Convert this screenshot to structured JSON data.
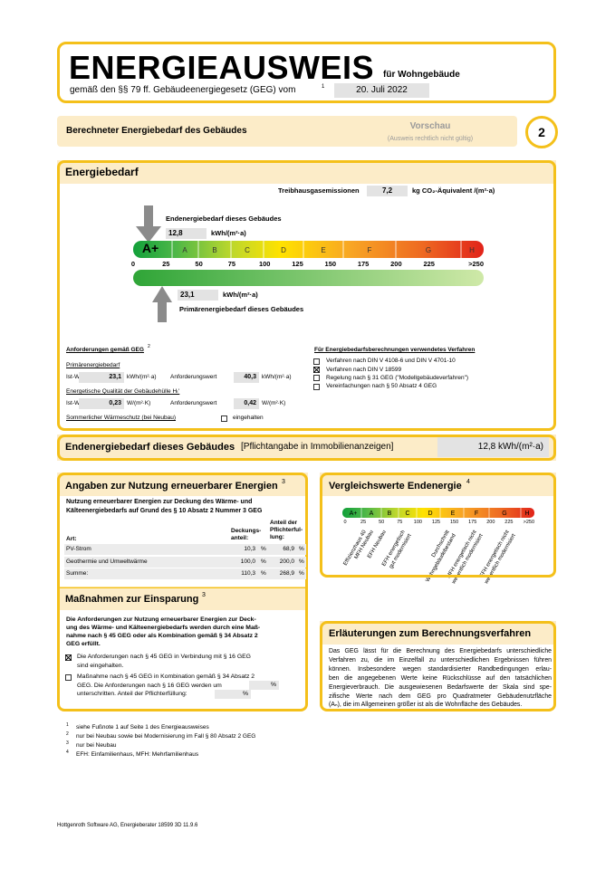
{
  "header": {
    "title": "ENERGIEAUSWEIS",
    "subtitle": "für Wohngebäude",
    "legal_basis": "gemäß den §§ 79 ff. Gebäudeenergiegesetz (GEG) vom",
    "legal_note": "1",
    "date": "20. Juli 2022"
  },
  "section": {
    "title": "Berechneter Energiebedarf des Gebäudes",
    "preview": "Vorschau",
    "preview_note": "(Ausweis rechtlich nicht gültig)",
    "page": "2"
  },
  "energy": {
    "title": "Energiebedarf",
    "ghg_label": "Treibhausgasemissionen",
    "ghg_value": "7,2",
    "ghg_unit": "kg CO₂-Äquivalent /(m²·a)",
    "final_label": "Endenergiebedarf dieses Gebäudes",
    "final_value": "12,8",
    "final_unit": "kWh/(m²·a)",
    "classes": [
      "A+",
      "A",
      "B",
      "C",
      "D",
      "E",
      "F",
      "G",
      "H"
    ],
    "ticks": [
      "0",
      "25",
      "50",
      "75",
      "100",
      "125",
      "150",
      "175",
      "200",
      "225",
      ">250"
    ],
    "primary_value": "23,1",
    "primary_unit": "kWh/(m²·a)",
    "primary_label": "Primärenergiebedarf dieses Gebäudes"
  },
  "requirements": {
    "title": "Anforderungen gemäß GEG",
    "note": "2",
    "primary": {
      "title": "Primärenergiebedarf",
      "actual_label": "Ist-Wert",
      "actual_value": "23,1",
      "actual_unit": "kWh/(m²·a)",
      "required_label": "Anforderungswert",
      "required_value": "40,3",
      "required_unit": "kWh/(m²·a)"
    },
    "envelope": {
      "title": "Energetische Qualität der Gebäudehülle Hₜ'",
      "actual_label": "Ist-Wert",
      "actual_value": "0,23",
      "actual_unit": "W/(m²·K)",
      "required_label": "Anforderungswert",
      "required_value": "0,42",
      "required_unit": "W/(m²·K)"
    },
    "summer": {
      "label": "Sommerlicher Wärmeschutz (bei Neubau)",
      "option": "eingehalten",
      "checked": false
    }
  },
  "procedure": {
    "title": "Für Energiebedarfsberechnungen verwendetes Verfahren",
    "options": [
      {
        "label": "Verfahren nach DIN V 4108-6 und DIN V 4701-10",
        "checked": false
      },
      {
        "label": "Verfahren nach DIN V 18599",
        "checked": true
      },
      {
        "label": "Regelung nach § 31 GEG (\"Modellgebäudeverfahren\")",
        "checked": false
      },
      {
        "label": "Vereinfachungen nach § 50 Absatz 4 GEG",
        "checked": false
      }
    ]
  },
  "final_demand": {
    "label": "Endenergiebedarf dieses Gebäudes",
    "note": "[Pflichtangabe in Immobilienanzeigen]",
    "value": "12,8 kWh/(m²·a)"
  },
  "renewables": {
    "title": "Angaben zur Nutzung erneuerbarer Energien",
    "note": "3",
    "intro": [
      "Nutzung erneuerbarer Energien zur Deckung des Wärme- und",
      "Kälteenergiebedarfs auf Grund des § 10 Absatz 2 Nummer 3 GEG"
    ],
    "columns": {
      "type": "Art:",
      "coverage": [
        "Deckungs-",
        "anteil:"
      ],
      "fulfilment": [
        "Anteil der",
        "Pflichterful-",
        "lung:"
      ]
    },
    "rows": [
      {
        "type": "PV-Strom",
        "coverage": "10,3",
        "fulfilment": "68,9"
      },
      {
        "type": "Geothermie und Umweltwärme",
        "coverage": "100,0",
        "fulfilment": "200,0"
      },
      {
        "type": "Summe:",
        "coverage": "110,3",
        "fulfilment": "268,9"
      }
    ],
    "unit": "%"
  },
  "measures": {
    "title": "Maßnahmen zur Einsparung",
    "note": "3",
    "intro": [
      "Die Anforderungen zur Nutzung erneuerbarer Energien zur Deck-",
      "ung des Wärme- und Kälteenergiebedarfs werden durch eine Maß-",
      "nahme nach § 45 GEG oder als Kombination gemäß § 34 Absatz 2",
      "GEG erfüllt."
    ],
    "options": [
      {
        "lines": [
          "Die Anforderungen nach § 45 GEG in Verbindung mit § 16 GEG",
          "sind eingehalten."
        ],
        "checked": true
      },
      {
        "lines": [
          "Maßnahme nach § 45 GEG in Kombination gemäß § 34 Absatz 2",
          "GEG. Die Anforderungen nach § 16 GEG werden um",
          "unterschritten.  Anteil der Pflichterfüllung:"
        ],
        "checked": false
      }
    ],
    "unit": "%"
  },
  "comparison": {
    "title": "Vergleichswerte Endenergie",
    "note": "4",
    "classes": [
      "A+",
      "A",
      "B",
      "C",
      "D",
      "E",
      "F",
      "G",
      "H"
    ],
    "ticks": [
      "0",
      "25",
      "50",
      "75",
      "100",
      "125",
      "150",
      "175",
      "200",
      "225",
      ">250"
    ],
    "labels": [
      [
        "Effizienzhaus 40"
      ],
      [
        "MFH Neubau"
      ],
      [
        "EFH Neubau"
      ],
      [
        "EFH energetisch",
        "gut modernisiert"
      ],
      [
        "Durchschnitt",
        "Wohngebäudebestand"
      ],
      [
        "MFH energetisch nicht",
        "wesentlich modernisiert"
      ],
      [
        "EFH energetisch nicht",
        "wesentlich modernisiert"
      ]
    ]
  },
  "explanation": {
    "title": "Erläuterungen zum Berechnungsverfahren",
    "lines": [
      "Das GEG lässt für die Berechnung des Energiebedarfs unterschiedliche",
      "Verfahren zu, die im Einzelfall zu unterschiedlichen Ergebnissen führen",
      "können. Insbesondere wegen standardisierter Randbedingungen erlau-",
      "ben die angegebenen Werte keine Rückschlüsse auf den tatsächlichen",
      "Energieverbrauch. Die ausgewiesenen Bedarfswerte der Skala sind spe-",
      "zifische Werte nach dem GEG pro Quadratmeter Gebäudenutzfläche",
      "(Aₙ), die im Allgemeinen größer ist als die Wohnfläche des Gebäudes."
    ]
  },
  "footnotes": [
    {
      "mark": "1",
      "text": "siehe Fußnote 1 auf Seite 1 des Energieausweises"
    },
    {
      "mark": "2",
      "text": "nur bei Neubau sowie bei Modernisierung im Fall § 80 Absatz 2 GEG"
    },
    {
      "mark": "3",
      "text": "nur bei Neubau"
    },
    {
      "mark": "4",
      "text": "EFH: Einfamilienhaus, MFH: Mehrfamilienhaus"
    }
  ],
  "footer": "Hottgenroth Software AG, Energieberater 18599 3D 11.9.6"
}
